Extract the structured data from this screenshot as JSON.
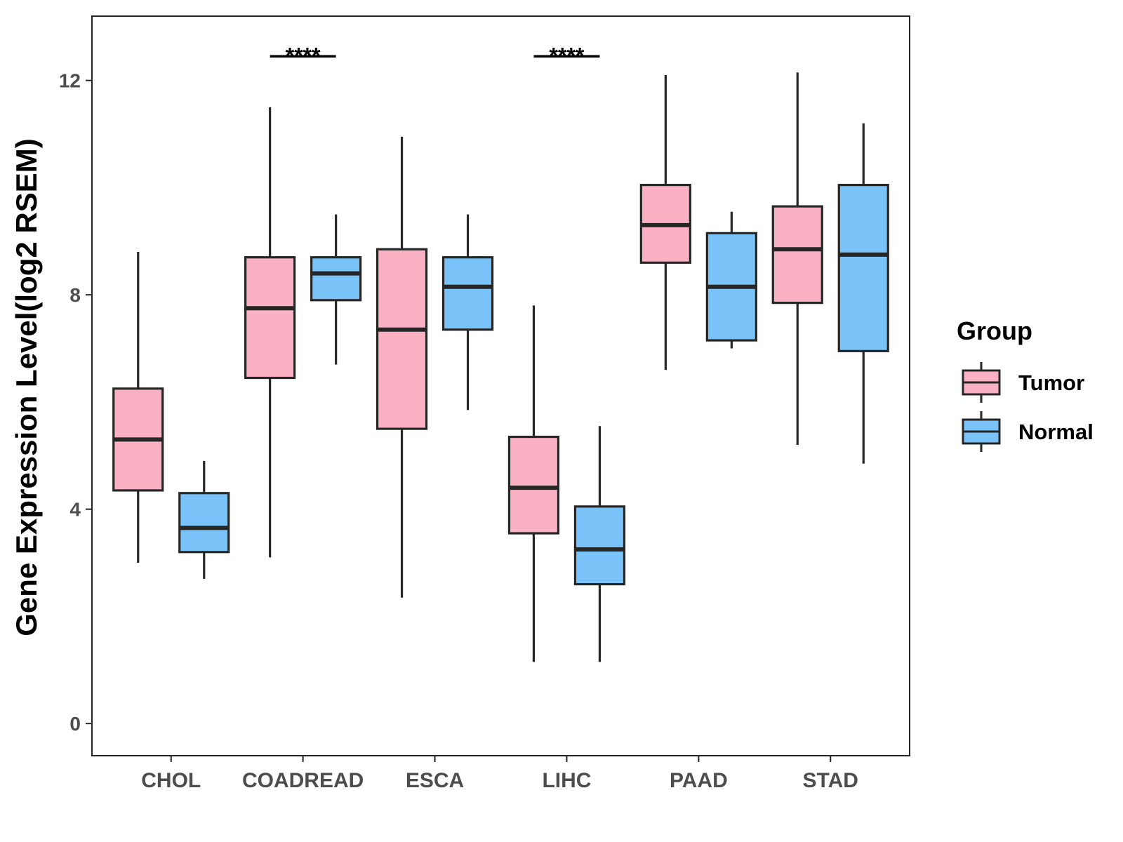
{
  "chart_data": {
    "type": "boxplot",
    "ylabel": "Gene Expression Level(log2 RSEM)",
    "xlabel": "",
    "ylim": [
      -0.6,
      13.2
    ],
    "yticks": [
      0,
      4,
      8,
      12
    ],
    "categories": [
      "CHOL",
      "COADREAD",
      "ESCA",
      "LIHC",
      "PAAD",
      "STAD"
    ],
    "legend": {
      "title": "Group",
      "entries": [
        "Tumor",
        "Normal"
      ],
      "position": "right"
    },
    "colors": {
      "Tumor": "#FBB1C4",
      "Normal": "#79C3F8",
      "outline": "#262626"
    },
    "series": [
      {
        "name": "Tumor",
        "boxes": [
          {
            "category": "CHOL",
            "min": 3.0,
            "q1": 4.35,
            "median": 5.3,
            "q3": 6.25,
            "max": 8.8
          },
          {
            "category": "COADREAD",
            "min": 3.1,
            "q1": 6.45,
            "median": 7.75,
            "q3": 8.7,
            "max": 11.5
          },
          {
            "category": "ESCA",
            "min": 2.35,
            "q1": 5.5,
            "median": 7.35,
            "q3": 8.85,
            "max": 10.95
          },
          {
            "category": "LIHC",
            "min": 1.15,
            "q1": 3.55,
            "median": 4.4,
            "q3": 5.35,
            "max": 7.8
          },
          {
            "category": "PAAD",
            "min": 6.6,
            "q1": 8.6,
            "median": 9.3,
            "q3": 10.05,
            "max": 12.1
          },
          {
            "category": "STAD",
            "min": 5.2,
            "q1": 7.85,
            "median": 8.85,
            "q3": 9.65,
            "max": 12.15
          }
        ]
      },
      {
        "name": "Normal",
        "boxes": [
          {
            "category": "CHOL",
            "min": 2.7,
            "q1": 3.2,
            "median": 3.65,
            "q3": 4.3,
            "max": 4.9
          },
          {
            "category": "COADREAD",
            "min": 6.7,
            "q1": 7.9,
            "median": 8.4,
            "q3": 8.7,
            "max": 9.5
          },
          {
            "category": "ESCA",
            "min": 5.85,
            "q1": 7.35,
            "median": 8.15,
            "q3": 8.7,
            "max": 9.5
          },
          {
            "category": "LIHC",
            "min": 1.15,
            "q1": 2.6,
            "median": 3.25,
            "q3": 4.05,
            "max": 5.55
          },
          {
            "category": "PAAD",
            "min": 7.0,
            "q1": 7.15,
            "median": 8.15,
            "q3": 9.15,
            "max": 9.55
          },
          {
            "category": "STAD",
            "min": 4.85,
            "q1": 6.95,
            "median": 8.75,
            "q3": 10.05,
            "max": 11.2
          }
        ]
      }
    ],
    "annotations": [
      {
        "category": "COADREAD",
        "text": "****",
        "y": 12.45
      },
      {
        "category": "LIHC",
        "text": "****",
        "y": 12.45
      }
    ]
  }
}
